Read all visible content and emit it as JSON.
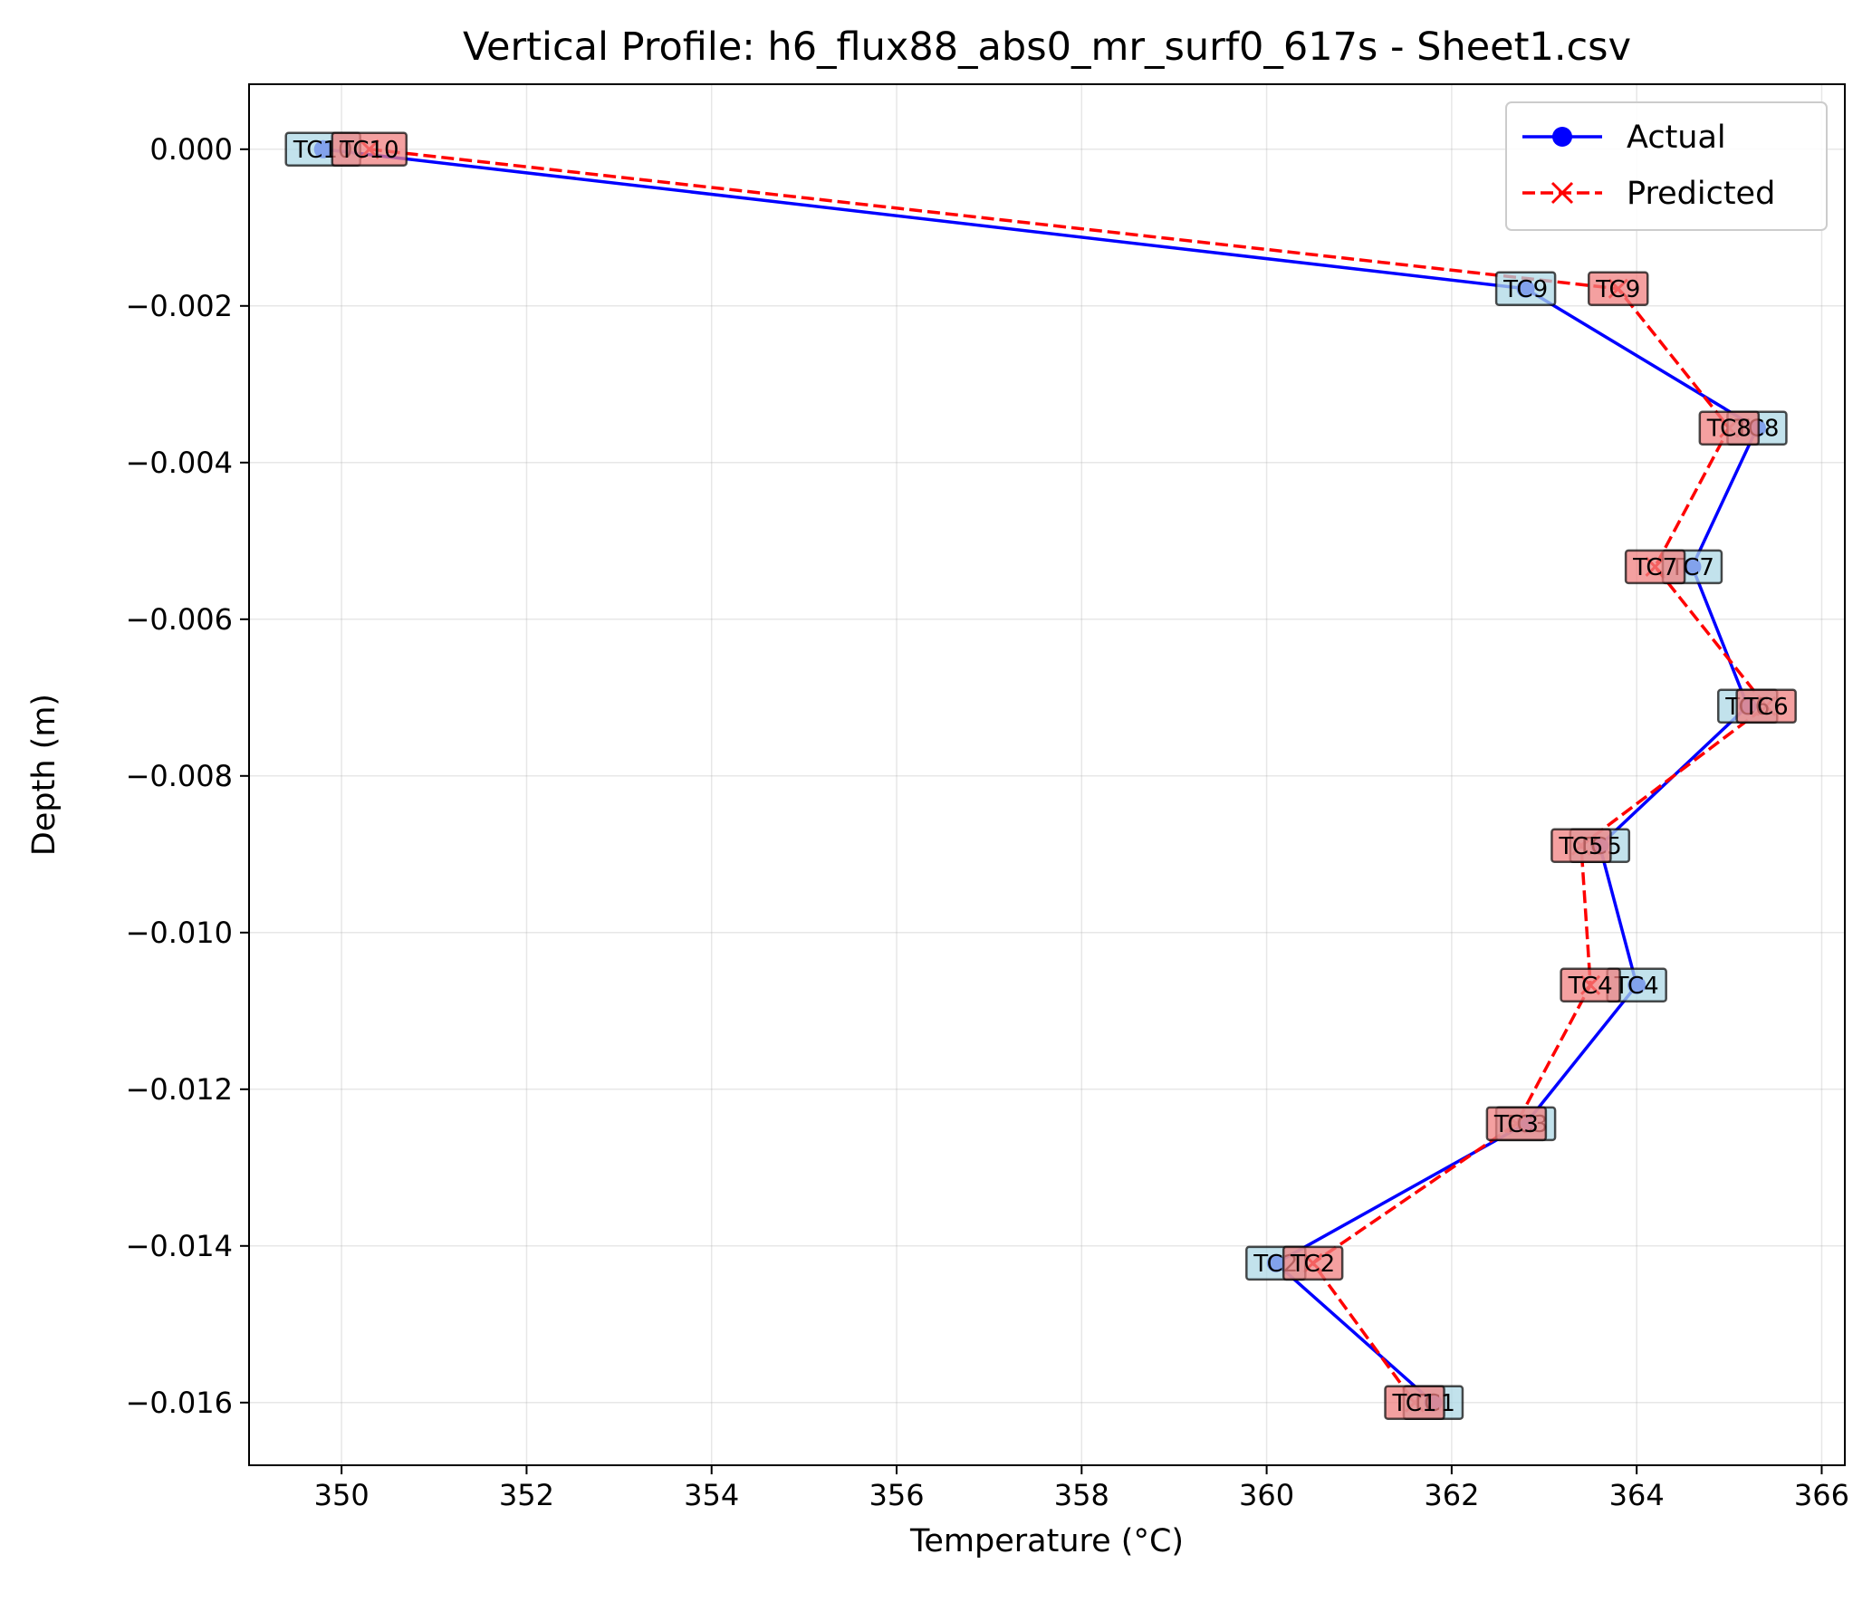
{
  "chart_data": {
    "type": "line",
    "title": "Vertical Profile: h6_flux88_abs0_mr_surf0_617s - Sheet1.csv",
    "xlabel": "Temperature (°C)",
    "ylabel": "Depth (m)",
    "xlim": [
      349.0,
      366.25
    ],
    "ylim": [
      -0.0168,
      0.00083
    ],
    "xticks": [
      350,
      352,
      354,
      356,
      358,
      360,
      362,
      364,
      366
    ],
    "xtick_labels": [
      "350",
      "352",
      "354",
      "356",
      "358",
      "360",
      "362",
      "364",
      "366"
    ],
    "yticks": [
      0.0,
      -0.002,
      -0.004,
      -0.006,
      -0.008,
      -0.01,
      -0.012,
      -0.014,
      -0.016
    ],
    "ytick_labels": [
      "0.000",
      "−0.002",
      "−0.004",
      "−0.006",
      "−0.008",
      "−0.010",
      "−0.012",
      "−0.014",
      "−0.016"
    ],
    "grid": true,
    "legend_position": "top-right",
    "labels": [
      "TC10",
      "TC9",
      "TC8",
      "TC7",
      "TC6",
      "TC5",
      "TC4",
      "TC3",
      "TC2",
      "TC1"
    ],
    "series": [
      {
        "name": "Actual",
        "color": "#0000ff",
        "marker": "circle",
        "linestyle": "solid",
        "label_box_color": "#add8e6",
        "depth": [
          0.0,
          -0.00178,
          -0.00356,
          -0.00533,
          -0.00711,
          -0.00889,
          -0.01067,
          -0.01244,
          -0.01422,
          -0.016
        ],
        "temperature": [
          349.8,
          362.8,
          365.3,
          364.6,
          365.2,
          363.6,
          364.0,
          362.8,
          360.1,
          361.8
        ]
      },
      {
        "name": "Predicted",
        "color": "#ff0000",
        "marker": "x",
        "linestyle": "dashed",
        "label_box_color": "#f08080",
        "depth": [
          0.0,
          -0.00178,
          -0.00356,
          -0.00533,
          -0.00711,
          -0.00889,
          -0.01067,
          -0.01244,
          -0.01422,
          -0.016
        ],
        "temperature": [
          350.3,
          363.8,
          365.0,
          364.2,
          365.4,
          363.4,
          363.5,
          362.7,
          360.5,
          361.6
        ]
      }
    ]
  }
}
